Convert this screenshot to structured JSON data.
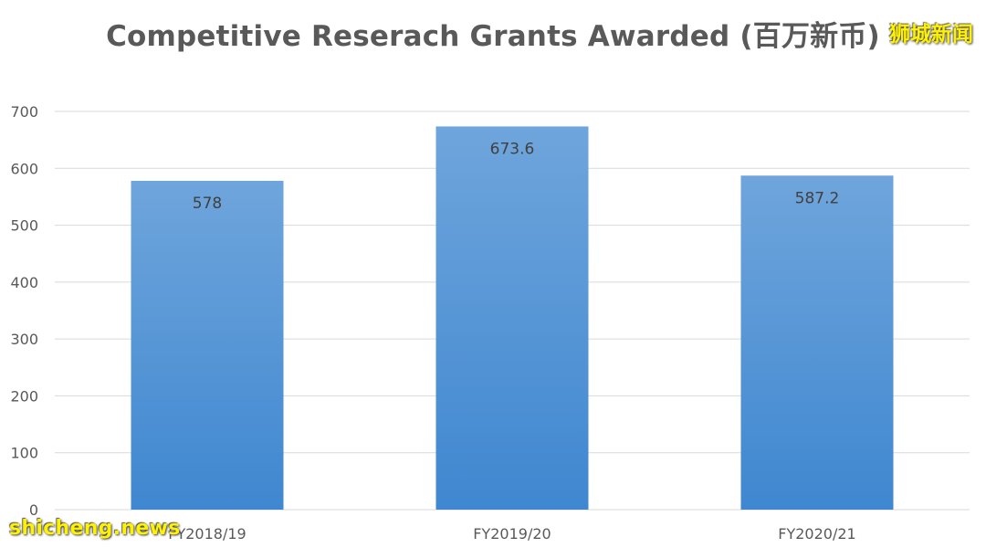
{
  "title": "Competitive Reserach Grants Awarded (百万新币)",
  "watermark_top": "狮城新闻",
  "watermark_bottom": "shicheng.news",
  "colors": {
    "bar_top": "#6fa5dc",
    "bar_bottom": "#3f87d0",
    "grid": "#d9d9d9",
    "text": "#595959"
  },
  "chart_data": {
    "type": "bar",
    "title": "Competitive Reserach Grants Awarded (百万新币)",
    "categories": [
      "FY2018/19",
      "FY2019/20",
      "FY2020/21"
    ],
    "values": [
      578,
      673.6,
      587.2
    ],
    "value_labels": [
      "578",
      "673.6",
      "587.2"
    ],
    "ylim": [
      0,
      700
    ],
    "yticks": [
      "0",
      "100",
      "200",
      "300",
      "400",
      "500",
      "600",
      "700"
    ],
    "xlabel": "",
    "ylabel": "",
    "grid": true,
    "legend": "none"
  }
}
